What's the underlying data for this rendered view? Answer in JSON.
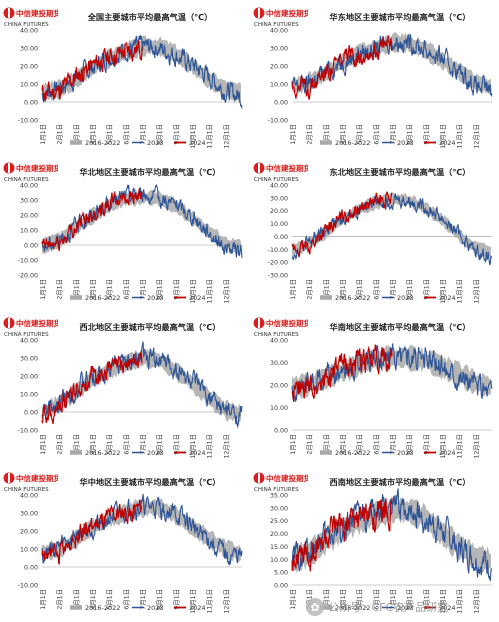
{
  "logo": {
    "cn": "中信建投期货",
    "en": "CHINA FUTURES"
  },
  "watermark": "公众号 · CFC农产品研究",
  "colors": {
    "hist": "#a9a9a9",
    "y2023": "#2f5597",
    "y2024": "#c00000",
    "logo": "#d81e1e"
  },
  "months": [
    "1月1日",
    "2月1日",
    "3月1日",
    "4月1日",
    "5月1日",
    "6月1日",
    "7月1日",
    "8月1日",
    "9月1日",
    "10月1日",
    "11月1日",
    "12月1日"
  ],
  "legend": [
    "2016-2022",
    "2023",
    "2024"
  ],
  "chart_data": [
    {
      "type": "line",
      "title": "全国主要城市平均最高气温（℃）",
      "ylim": [
        -10,
        40
      ],
      "ticks": [
        "40.00",
        "30.00",
        "20.00",
        "10.00",
        "0.00",
        "-10.00"
      ],
      "legend_position": "bottom",
      "grid": false,
      "series": [
        {
          "name": "2016-2022",
          "x": [
            "1月1日",
            "2月1日",
            "3月1日",
            "4月1日",
            "5月1日",
            "6月1日",
            "7月1日",
            "8月1日",
            "9月1日",
            "10月1日",
            "11月1日",
            "12月1日",
            "12月31日"
          ],
          "values": [
            5,
            7,
            12,
            19,
            24,
            28,
            31,
            31,
            27,
            20,
            13,
            7,
            5
          ]
        },
        {
          "name": "2023",
          "x": [
            "1月1日",
            "2月1日",
            "3月1日",
            "4月1日",
            "5月1日",
            "6月1日",
            "7月1日",
            "8月1日",
            "9月1日",
            "10月1日",
            "11月1日",
            "12月1日",
            "12月31日"
          ],
          "values": [
            4,
            8,
            13,
            19,
            25,
            29,
            31,
            30,
            26,
            21,
            14,
            6,
            3
          ]
        },
        {
          "name": "2024",
          "x": [
            "1月1日",
            "2月1日",
            "3月1日",
            "4月1日",
            "5月1日",
            "6月1日",
            "7月1日"
          ],
          "values": [
            5,
            6,
            14,
            20,
            25,
            28,
            30
          ]
        }
      ]
    },
    {
      "type": "line",
      "title": "华东地区主要城市平均最高气温（℃）",
      "ylim": [
        -10,
        40
      ],
      "ticks": [
        "40.00",
        "30.00",
        "20.00",
        "10.00",
        "0.00",
        "-10.00"
      ],
      "legend_position": "bottom",
      "grid": false,
      "series": [
        {
          "name": "2016-2022",
          "x": [
            "1月1日",
            "2月1日",
            "3月1日",
            "4月1日",
            "5月1日",
            "6月1日",
            "7月1日",
            "8月1日",
            "9月1日",
            "10月1日",
            "11月1日",
            "12月1日",
            "12月31日"
          ],
          "values": [
            9,
            11,
            16,
            22,
            27,
            29,
            33,
            33,
            29,
            23,
            17,
            11,
            8
          ]
        },
        {
          "name": "2023",
          "x": [
            "1月1日",
            "2月1日",
            "3月1日",
            "4月1日",
            "5月1日",
            "6月1日",
            "7月1日",
            "8月1日",
            "9月1日",
            "10月1日",
            "11月1日",
            "12月1日",
            "12月31日"
          ],
          "values": [
            8,
            10,
            17,
            22,
            27,
            30,
            34,
            33,
            29,
            24,
            17,
            9,
            6
          ]
        },
        {
          "name": "2024",
          "x": [
            "1月1日",
            "2月1日",
            "3月1日",
            "4月1日",
            "5月1日",
            "6月1日",
            "7月1日"
          ],
          "values": [
            9,
            8,
            17,
            23,
            27,
            29,
            32
          ]
        }
      ]
    },
    {
      "type": "line",
      "title": "华北地区主要城市平均最高气温（℃）",
      "ylim": [
        -20,
        40
      ],
      "ticks": [
        "40.00",
        "30.00",
        "20.00",
        "10.00",
        "0.00",
        "-10.00",
        "-20.00"
      ],
      "legend_position": "bottom",
      "grid": false,
      "series": [
        {
          "name": "2016-2022",
          "x": [
            "1月1日",
            "2月1日",
            "3月1日",
            "4月1日",
            "5月1日",
            "6月1日",
            "7月1日",
            "8月1日",
            "9月1日",
            "10月1日",
            "11月1日",
            "12月1日",
            "12月31日"
          ],
          "values": [
            -1,
            3,
            11,
            19,
            26,
            31,
            32,
            31,
            26,
            18,
            9,
            1,
            -2
          ]
        },
        {
          "name": "2023",
          "x": [
            "1月1日",
            "2月1日",
            "3月1日",
            "4月1日",
            "5月1日",
            "6月1日",
            "7月1日",
            "8月1日",
            "9月1日",
            "10月1日",
            "11月1日",
            "12月1日",
            "12月31日"
          ],
          "values": [
            -2,
            4,
            12,
            20,
            27,
            33,
            34,
            31,
            27,
            19,
            9,
            -2,
            -5
          ]
        },
        {
          "name": "2024",
          "x": [
            "1月1日",
            "2月1日",
            "3月1日",
            "4月1日",
            "5月1日",
            "6月1日",
            "7月1日"
          ],
          "values": [
            -1,
            1,
            12,
            21,
            27,
            33,
            32
          ]
        }
      ]
    },
    {
      "type": "line",
      "title": "东北地区主要城市平均最高气温（℃）",
      "ylim": [
        -30,
        40
      ],
      "ticks": [
        "40.00",
        "30.00",
        "20.00",
        "10.00",
        "0.00",
        "-10.00",
        "-20.00",
        "-30.00"
      ],
      "legend_position": "bottom",
      "grid": false,
      "series": [
        {
          "name": "2016-2022",
          "x": [
            "1月1日",
            "2月1日",
            "3月1日",
            "4月1日",
            "5月1日",
            "6月1日",
            "7月1日",
            "8月1日",
            "9月1日",
            "10月1日",
            "11月1日",
            "12月1日",
            "12月31日"
          ],
          "values": [
            -11,
            -6,
            3,
            13,
            21,
            26,
            29,
            28,
            22,
            13,
            1,
            -9,
            -12
          ]
        },
        {
          "name": "2023",
          "x": [
            "1月1日",
            "2月1日",
            "3月1日",
            "4月1日",
            "5月1日",
            "6月1日",
            "7月1日",
            "8月1日",
            "9月1日",
            "10月1日",
            "11月1日",
            "12月1日",
            "12月31日"
          ],
          "values": [
            -13,
            -5,
            4,
            14,
            22,
            27,
            29,
            28,
            23,
            14,
            2,
            -12,
            -16
          ]
        },
        {
          "name": "2024",
          "x": [
            "1月1日",
            "2月1日",
            "3月1日",
            "4月1日",
            "5月1日",
            "6月1日",
            "7月1日"
          ],
          "values": [
            -12,
            -8,
            4,
            15,
            22,
            27,
            29
          ]
        }
      ]
    },
    {
      "type": "line",
      "title": "西北地区主要城市平均最高气温（℃）",
      "ylim": [
        -10,
        40
      ],
      "ticks": [
        "40.00",
        "30.00",
        "20.00",
        "10.00",
        "0.00",
        "-10.00"
      ],
      "legend_position": "bottom",
      "grid": false,
      "series": [
        {
          "name": "2016-2022",
          "x": [
            "1月1日",
            "2月1日",
            "3月1日",
            "4月1日",
            "5月1日",
            "6月1日",
            "7月1日",
            "8月1日",
            "9月1日",
            "10月1日",
            "11月1日",
            "12月1日",
            "12月31日"
          ],
          "values": [
            0,
            4,
            11,
            18,
            23,
            27,
            30,
            29,
            23,
            16,
            8,
            1,
            -1
          ]
        },
        {
          "name": "2023",
          "x": [
            "1月1日",
            "2月1日",
            "3月1日",
            "4月1日",
            "5月1日",
            "6月1日",
            "7月1日",
            "8月1日",
            "9月1日",
            "10月1日",
            "11月1日",
            "12月1日",
            "12月31日"
          ],
          "values": [
            -1,
            5,
            12,
            19,
            24,
            28,
            31,
            29,
            24,
            17,
            8,
            0,
            -2
          ]
        },
        {
          "name": "2024",
          "x": [
            "1月1日",
            "2月1日",
            "3月1日",
            "4月1日",
            "5月1日",
            "6月1日",
            "7月1日"
          ],
          "values": [
            -1,
            3,
            12,
            19,
            24,
            27,
            29
          ]
        }
      ]
    },
    {
      "type": "line",
      "title": "华南地区主要城市平均最高气温（℃）",
      "ylim": [
        0,
        40
      ],
      "ticks": [
        "40.00",
        "30.00",
        "20.00",
        "10.00",
        "0.00"
      ],
      "legend_position": "bottom",
      "grid": false,
      "series": [
        {
          "name": "2016-2022",
          "x": [
            "1月1日",
            "2月1日",
            "3月1日",
            "4月1日",
            "5月1日",
            "6月1日",
            "7月1日",
            "8月1日",
            "9月1日",
            "10月1日",
            "11月1日",
            "12月1日",
            "12月31日"
          ],
          "values": [
            19,
            20,
            23,
            26,
            29,
            31,
            32,
            32,
            31,
            28,
            25,
            21,
            19
          ]
        },
        {
          "name": "2023",
          "x": [
            "1月1日",
            "2月1日",
            "3月1日",
            "4月1日",
            "5月1日",
            "6月1日",
            "7月1日",
            "8月1日",
            "9月1日",
            "10月1日",
            "11月1日",
            "12月1日",
            "12月31日"
          ],
          "values": [
            18,
            20,
            24,
            27,
            30,
            32,
            33,
            33,
            31,
            29,
            25,
            20,
            18
          ]
        },
        {
          "name": "2024",
          "x": [
            "1月1日",
            "2月1日",
            "3月1日",
            "4月1日",
            "5月1日",
            "6月1日",
            "7月1日"
          ],
          "values": [
            19,
            17,
            24,
            28,
            30,
            31,
            32
          ]
        }
      ]
    },
    {
      "type": "line",
      "title": "华中地区主要城市平均最高气温（℃）",
      "ylim": [
        -10,
        40
      ],
      "ticks": [
        "40.00",
        "30.00",
        "20.00",
        "10.00",
        "0.00",
        "-10.00"
      ],
      "legend_position": "bottom",
      "grid": false,
      "series": [
        {
          "name": "2016-2022",
          "x": [
            "1月1日",
            "2月1日",
            "3月1日",
            "4月1日",
            "5月1日",
            "6月1日",
            "7月1日",
            "8月1日",
            "9月1日",
            "10月1日",
            "11月1日",
            "12月1日",
            "12月31日"
          ],
          "values": [
            8,
            10,
            15,
            22,
            27,
            30,
            33,
            33,
            29,
            22,
            16,
            10,
            7
          ]
        },
        {
          "name": "2023",
          "x": [
            "1月1日",
            "2月1日",
            "3月1日",
            "4月1日",
            "5月1日",
            "6月1日",
            "7月1日",
            "8月1日",
            "9月1日",
            "10月1日",
            "11月1日",
            "12月1日",
            "12月31日"
          ],
          "values": [
            7,
            11,
            17,
            22,
            27,
            31,
            33,
            33,
            29,
            23,
            15,
            7,
            5
          ]
        },
        {
          "name": "2024",
          "x": [
            "1月1日",
            "2月1日",
            "3月1日",
            "4月1日",
            "5月1日",
            "6月1日",
            "7月1日"
          ],
          "values": [
            8,
            6,
            16,
            23,
            27,
            30,
            32
          ]
        }
      ]
    },
    {
      "type": "line",
      "title": "西南地区主要城市平均最高气温（℃）",
      "ylim": [
        0,
        35
      ],
      "ticks": [
        "35.00",
        "30.00",
        "25.00",
        "20.00",
        "15.00",
        "10.00",
        "5.00",
        "0.00"
      ],
      "legend_position": "bottom",
      "grid": false,
      "series": [
        {
          "name": "2016-2022",
          "x": [
            "1月1日",
            "2月1日",
            "3月1日",
            "4月1日",
            "5月1日",
            "6月1日",
            "7月1日",
            "8月1日",
            "9月1日",
            "10月1日",
            "11月1日",
            "12月1日",
            "12月31日"
          ],
          "values": [
            10,
            12,
            17,
            21,
            25,
            27,
            29,
            29,
            26,
            20,
            15,
            11,
            9
          ]
        },
        {
          "name": "2023",
          "x": [
            "1月1日",
            "2月1日",
            "3月1日",
            "4月1日",
            "5月1日",
            "6月1日",
            "7月1日",
            "8月1日",
            "9月1日",
            "10月1日",
            "11月1日",
            "12月1日",
            "12月31日"
          ],
          "values": [
            9,
            13,
            18,
            22,
            26,
            28,
            30,
            29,
            26,
            21,
            15,
            10,
            8
          ]
        },
        {
          "name": "2024",
          "x": [
            "1月1日",
            "2月1日",
            "3月1日",
            "4月1日",
            "5月1日",
            "6月1日",
            "7月1日"
          ],
          "values": [
            10,
            11,
            18,
            22,
            26,
            27,
            29
          ]
        }
      ]
    }
  ]
}
